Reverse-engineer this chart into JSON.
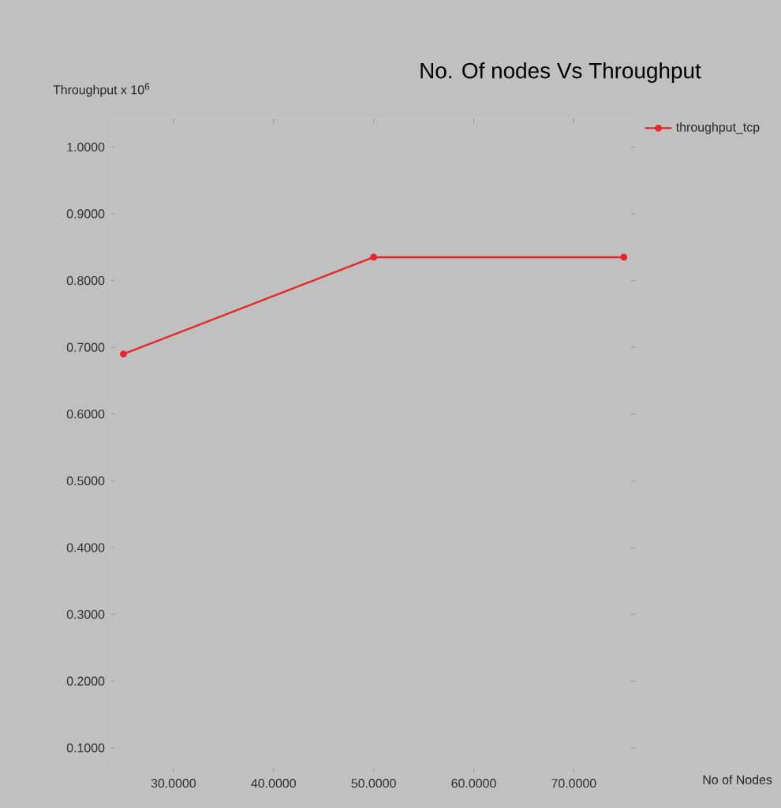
{
  "chart_data": {
    "type": "line",
    "title": "No. Of nodes Vs Throughput",
    "annotations": [
      "No of Nodes"
    ],
    "ylabel": "Throughput x 10$^{6}$",
    "x": [
      25,
      50,
      75
    ],
    "series": [
      {
        "name": "throughput_tcp",
        "color": "#e8262a",
        "values": [
          0.69,
          0.835,
          0.835
        ]
      }
    ],
    "xlim": [
      23.7,
      76.2
    ],
    "ylim": [
      0.062,
      1.043
    ],
    "xticks": [
      {
        "value": 30,
        "label": "30.0000"
      },
      {
        "value": 40,
        "label": "40.0000"
      },
      {
        "value": 50,
        "label": "50.0000"
      },
      {
        "value": 60,
        "label": "60.0000"
      },
      {
        "value": 70,
        "label": "70.0000"
      }
    ],
    "yticks": [
      {
        "value": 0.1,
        "label": "0.1000"
      },
      {
        "value": 0.2,
        "label": "0.2000"
      },
      {
        "value": 0.3,
        "label": "0.3000"
      },
      {
        "value": 0.4,
        "label": "0.4000"
      },
      {
        "value": 0.5,
        "label": "0.5000"
      },
      {
        "value": 0.6,
        "label": "0.6000"
      },
      {
        "value": 0.7,
        "label": "0.7000"
      },
      {
        "value": 0.8,
        "label": "0.8000"
      },
      {
        "value": 0.9,
        "label": "0.9000"
      },
      {
        "value": 1.0,
        "label": "1.0000"
      }
    ],
    "legend": "top right",
    "marker": "circle",
    "line_style": "solid"
  }
}
